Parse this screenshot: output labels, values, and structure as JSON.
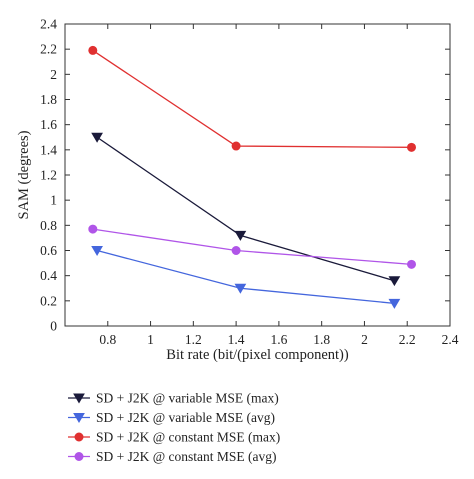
{
  "chart_data": {
    "type": "line",
    "title": "",
    "xlabel": "Bit rate (bit/(pixel component))",
    "ylabel": "SAM (degrees)",
    "xlim": [
      0.6,
      2.4
    ],
    "ylim": [
      0,
      2.4
    ],
    "xticks": [
      "0.8",
      "1",
      "1.2",
      "1.4",
      "1.6",
      "1.8",
      "2",
      "2.2",
      "2.4"
    ],
    "yticks": [
      "0",
      "0.2",
      "0.4",
      "0.6",
      "0.8",
      "1",
      "1.2",
      "1.4",
      "1.6",
      "1.8",
      "2",
      "2.2",
      "2.4"
    ],
    "grid": false,
    "legend_position": "below",
    "series": [
      {
        "name": "SD + J2K @ variable MSE (max)",
        "color": "#1a1a3a",
        "marker": "triangle-down",
        "x": [
          0.75,
          1.42,
          2.14
        ],
        "y": [
          1.5,
          0.72,
          0.36
        ]
      },
      {
        "name": "SD + J2K @ variable MSE (avg)",
        "color": "#4466dd",
        "marker": "triangle-down",
        "x": [
          0.75,
          1.42,
          2.14
        ],
        "y": [
          0.6,
          0.3,
          0.18
        ]
      },
      {
        "name": "SD + J2K @ constant MSE (max)",
        "color": "#e03030",
        "marker": "circle",
        "x": [
          0.73,
          1.4,
          2.22
        ],
        "y": [
          2.19,
          1.43,
          1.42
        ]
      },
      {
        "name": "SD + J2K @ constant MSE (avg)",
        "color": "#b055e8",
        "marker": "circle",
        "x": [
          0.73,
          1.4,
          2.22
        ],
        "y": [
          0.77,
          0.6,
          0.49
        ]
      }
    ]
  }
}
